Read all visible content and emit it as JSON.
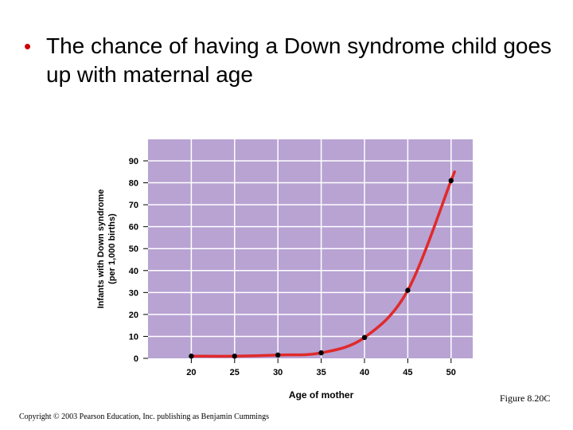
{
  "slide": {
    "title": "The chance of having a Down syndrome child goes up with maternal age",
    "figure_label": "Figure 8.20C",
    "copyright": "Copyright © 2003 Pearson Education, Inc. publishing as Benjamin Cummings"
  },
  "colors": {
    "bullet": "#cc0000",
    "plot_bg": "#b8a3d3",
    "grid": "#ffffff",
    "curve": "#e02a2a",
    "point": "#000000"
  },
  "chart_data": {
    "type": "line",
    "title": "",
    "xlabel": "Age of mother",
    "ylabel": "Infants with Down syndrome",
    "ylabel2": "(per 1,000 births)",
    "x": [
      20,
      25,
      30,
      35,
      40,
      45,
      50
    ],
    "y": [
      1,
      1,
      1.5,
      2.5,
      9.5,
      31,
      81
    ],
    "xlim": [
      15,
      52.5
    ],
    "ylim": [
      0,
      90
    ],
    "xticks": [
      20,
      25,
      30,
      35,
      40,
      45,
      50
    ],
    "yticks": [
      0,
      10,
      20,
      30,
      40,
      50,
      60,
      70,
      80,
      90
    ],
    "grid": true,
    "legend": "none"
  }
}
